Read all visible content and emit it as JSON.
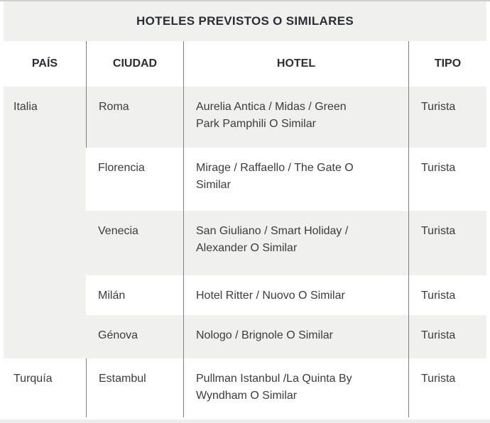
{
  "title": "HOTELES PREVISTOS O SIMILARES",
  "table": {
    "headers": {
      "pais": "PAÍS",
      "ciudad": "CIUDAD",
      "hotel": "HOTEL",
      "tipo": "TIPO"
    },
    "rows": [
      {
        "pais": "Italia",
        "ciudad": "Roma",
        "hotel": "Aurelia Antica / Midas / Green\nPark Pamphili O Similar",
        "tipo": "Turista"
      },
      {
        "pais": "",
        "ciudad": "Florencia",
        "hotel": "Mirage / Raffaello / The Gate O\nSimilar",
        "tipo": "Turista"
      },
      {
        "pais": "",
        "ciudad": "Venecia",
        "hotel": "San Giuliano / Smart Holiday /\nAlexander O Similar",
        "tipo": "Turista"
      },
      {
        "pais": "",
        "ciudad": "Milán",
        "hotel": "Hotel Ritter / Nuovo O Similar",
        "tipo": "Turista"
      },
      {
        "pais": "",
        "ciudad": "Génova",
        "hotel": "Nologo / Brignole O Similar",
        "tipo": "Turista"
      },
      {
        "pais": "Turquía",
        "ciudad": "Estambul",
        "hotel": "Pullman Istanbul /La Quinta By\nWyndham O Similar",
        "tipo": "Turista"
      }
    ]
  },
  "colors": {
    "row_shade": "#f0f0ef",
    "divider_line": "#7f7f7f",
    "heading_text": "#2b2e33",
    "body_text": "#3c3c3c",
    "top_edge": "#cfcfcf",
    "bottom_edge": "#ededed"
  }
}
